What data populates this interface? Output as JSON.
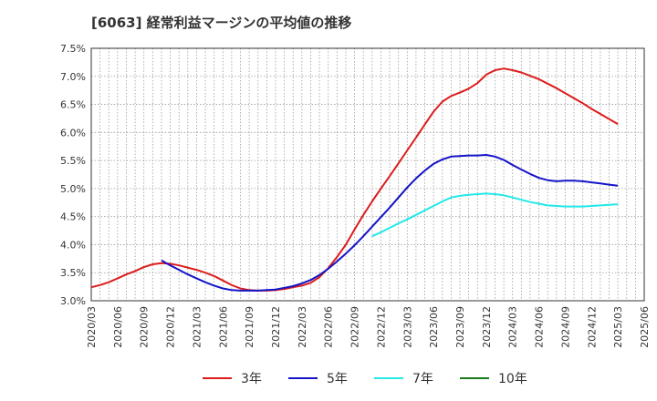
{
  "chart_data": {
    "type": "line",
    "title": "[6063]  経常利益マージンの平均値の推移",
    "xlabel": "",
    "ylabel": "",
    "y_tick_labels": [
      "3.0%",
      "3.5%",
      "4.0%",
      "4.5%",
      "5.0%",
      "5.5%",
      "6.0%",
      "6.5%",
      "7.0%",
      "7.5%"
    ],
    "y_ticks": [
      3.0,
      3.5,
      4.0,
      4.5,
      5.0,
      5.5,
      6.0,
      6.5,
      7.0,
      7.5
    ],
    "ylim": [
      3.0,
      7.5
    ],
    "x_tick_labels": [
      "2020/03",
      "2020/06",
      "2020/09",
      "2020/12",
      "2021/03",
      "2021/06",
      "2021/09",
      "2021/12",
      "2022/03",
      "2022/06",
      "2022/09",
      "2022/12",
      "2023/03",
      "2023/06",
      "2023/09",
      "2023/12",
      "2024/03",
      "2024/06",
      "2024/09",
      "2024/12",
      "2025/03",
      "2025/06"
    ],
    "grid": true,
    "legend_position": "bottom",
    "series": [
      {
        "name": "3年",
        "color": "#dd1c1c",
        "points": [
          [
            "2020/03",
            3.24
          ],
          [
            "2020/04",
            3.28
          ],
          [
            "2020/05",
            3.33
          ],
          [
            "2020/06",
            3.4
          ],
          [
            "2020/07",
            3.47
          ],
          [
            "2020/08",
            3.53
          ],
          [
            "2020/09",
            3.6
          ],
          [
            "2020/10",
            3.65
          ],
          [
            "2020/11",
            3.67
          ],
          [
            "2020/12",
            3.66
          ],
          [
            "2021/01",
            3.63
          ],
          [
            "2021/02",
            3.59
          ],
          [
            "2021/03",
            3.55
          ],
          [
            "2021/04",
            3.5
          ],
          [
            "2021/05",
            3.44
          ],
          [
            "2021/06",
            3.36
          ],
          [
            "2021/07",
            3.28
          ],
          [
            "2021/08",
            3.22
          ],
          [
            "2021/09",
            3.19
          ],
          [
            "2021/10",
            3.18
          ],
          [
            "2021/11",
            3.18
          ],
          [
            "2021/12",
            3.19
          ],
          [
            "2022/01",
            3.21
          ],
          [
            "2022/02",
            3.24
          ],
          [
            "2022/03",
            3.27
          ],
          [
            "2022/04",
            3.32
          ],
          [
            "2022/05",
            3.42
          ],
          [
            "2022/06",
            3.58
          ],
          [
            "2022/07",
            3.78
          ],
          [
            "2022/08",
            4.0
          ],
          [
            "2022/09",
            4.27
          ],
          [
            "2022/10",
            4.53
          ],
          [
            "2022/11",
            4.77
          ],
          [
            "2022/12",
            5.0
          ],
          [
            "2023/01",
            5.22
          ],
          [
            "2023/02",
            5.45
          ],
          [
            "2023/03",
            5.68
          ],
          [
            "2023/04",
            5.91
          ],
          [
            "2023/05",
            6.14
          ],
          [
            "2023/06",
            6.37
          ],
          [
            "2023/07",
            6.55
          ],
          [
            "2023/08",
            6.65
          ],
          [
            "2023/09",
            6.71
          ],
          [
            "2023/10",
            6.78
          ],
          [
            "2023/11",
            6.88
          ],
          [
            "2023/12",
            7.03
          ],
          [
            "2024/01",
            7.11
          ],
          [
            "2024/02",
            7.14
          ],
          [
            "2024/03",
            7.11
          ],
          [
            "2024/04",
            7.07
          ],
          [
            "2024/05",
            7.01
          ],
          [
            "2024/06",
            6.95
          ],
          [
            "2024/07",
            6.87
          ],
          [
            "2024/08",
            6.79
          ],
          [
            "2024/09",
            6.7
          ],
          [
            "2024/10",
            6.61
          ],
          [
            "2024/11",
            6.52
          ],
          [
            "2024/12",
            6.42
          ],
          [
            "2025/01",
            6.33
          ],
          [
            "2025/02",
            6.24
          ],
          [
            "2025/03",
            6.15
          ]
        ]
      },
      {
        "name": "5年",
        "color": "#1414c8",
        "points": [
          [
            "2020/11",
            3.72
          ],
          [
            "2020/12",
            3.63
          ],
          [
            "2021/01",
            3.55
          ],
          [
            "2021/02",
            3.47
          ],
          [
            "2021/03",
            3.4
          ],
          [
            "2021/04",
            3.33
          ],
          [
            "2021/05",
            3.27
          ],
          [
            "2021/06",
            3.22
          ],
          [
            "2021/07",
            3.19
          ],
          [
            "2021/08",
            3.18
          ],
          [
            "2021/09",
            3.18
          ],
          [
            "2021/10",
            3.18
          ],
          [
            "2021/11",
            3.19
          ],
          [
            "2021/12",
            3.2
          ],
          [
            "2022/01",
            3.23
          ],
          [
            "2022/02",
            3.26
          ],
          [
            "2022/03",
            3.31
          ],
          [
            "2022/04",
            3.37
          ],
          [
            "2022/05",
            3.46
          ],
          [
            "2022/06",
            3.57
          ],
          [
            "2022/07",
            3.7
          ],
          [
            "2022/08",
            3.84
          ],
          [
            "2022/09",
            3.99
          ],
          [
            "2022/10",
            4.15
          ],
          [
            "2022/11",
            4.32
          ],
          [
            "2022/12",
            4.49
          ],
          [
            "2023/01",
            4.66
          ],
          [
            "2023/02",
            4.84
          ],
          [
            "2023/03",
            5.02
          ],
          [
            "2023/04",
            5.18
          ],
          [
            "2023/05",
            5.32
          ],
          [
            "2023/06",
            5.44
          ],
          [
            "2023/07",
            5.52
          ],
          [
            "2023/08",
            5.57
          ],
          [
            "2023/09",
            5.58
          ],
          [
            "2023/10",
            5.59
          ],
          [
            "2023/11",
            5.59
          ],
          [
            "2023/12",
            5.6
          ],
          [
            "2024/01",
            5.57
          ],
          [
            "2024/02",
            5.51
          ],
          [
            "2024/03",
            5.42
          ],
          [
            "2024/04",
            5.34
          ],
          [
            "2024/05",
            5.26
          ],
          [
            "2024/06",
            5.19
          ],
          [
            "2024/07",
            5.15
          ],
          [
            "2024/08",
            5.13
          ],
          [
            "2024/09",
            5.14
          ],
          [
            "2024/10",
            5.14
          ],
          [
            "2024/11",
            5.13
          ],
          [
            "2024/12",
            5.11
          ],
          [
            "2025/01",
            5.09
          ],
          [
            "2025/02",
            5.07
          ],
          [
            "2025/03",
            5.05
          ]
        ]
      },
      {
        "name": "7年",
        "color": "#22e8e8",
        "points": [
          [
            "2022/11",
            4.15
          ],
          [
            "2022/12",
            4.22
          ],
          [
            "2023/01",
            4.3
          ],
          [
            "2023/02",
            4.38
          ],
          [
            "2023/03",
            4.45
          ],
          [
            "2023/04",
            4.53
          ],
          [
            "2023/05",
            4.61
          ],
          [
            "2023/06",
            4.69
          ],
          [
            "2023/07",
            4.77
          ],
          [
            "2023/08",
            4.84
          ],
          [
            "2023/09",
            4.87
          ],
          [
            "2023/10",
            4.89
          ],
          [
            "2023/11",
            4.9
          ],
          [
            "2023/12",
            4.91
          ],
          [
            "2024/01",
            4.9
          ],
          [
            "2024/02",
            4.88
          ],
          [
            "2024/03",
            4.84
          ],
          [
            "2024/04",
            4.8
          ],
          [
            "2024/05",
            4.76
          ],
          [
            "2024/06",
            4.73
          ],
          [
            "2024/07",
            4.7
          ],
          [
            "2024/08",
            4.69
          ],
          [
            "2024/09",
            4.68
          ],
          [
            "2024/10",
            4.68
          ],
          [
            "2024/11",
            4.68
          ],
          [
            "2024/12",
            4.69
          ],
          [
            "2025/01",
            4.7
          ],
          [
            "2025/02",
            4.71
          ],
          [
            "2025/03",
            4.72
          ]
        ]
      },
      {
        "name": "10年",
        "color": "#1a7a1a",
        "points": []
      }
    ]
  }
}
